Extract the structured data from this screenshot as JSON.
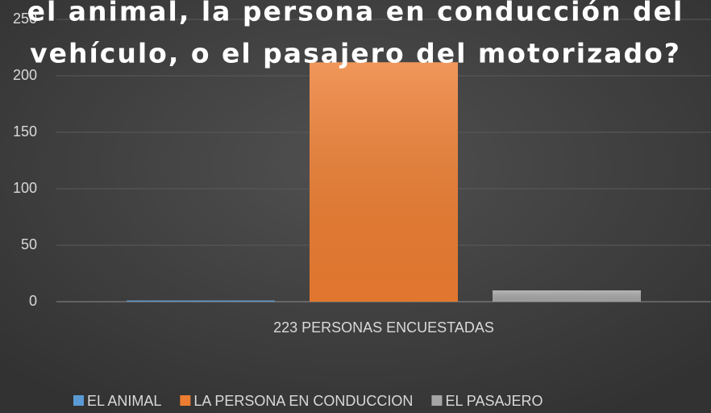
{
  "chart_data": {
    "type": "bar",
    "title": [
      "el animal, la persona en conducción del",
      "vehículo, o el pasajero del motorizado?"
    ],
    "categories": [
      "223 PERSONAS ENCUESTADAS"
    ],
    "series": [
      {
        "name": "EL ANIMAL",
        "color": "#5b9bd5",
        "values": [
          1
        ]
      },
      {
        "name": "LA PERSONA EN CONDUCCION",
        "color": "#ed7d31",
        "values": [
          212
        ]
      },
      {
        "name": "EL PASAJERO",
        "color": "#a5a5a5",
        "values": [
          10
        ]
      }
    ],
    "ylim": [
      0,
      250
    ],
    "yticks": [
      0,
      50,
      100,
      150,
      200,
      250
    ],
    "grid": true,
    "legend": "bottom"
  }
}
